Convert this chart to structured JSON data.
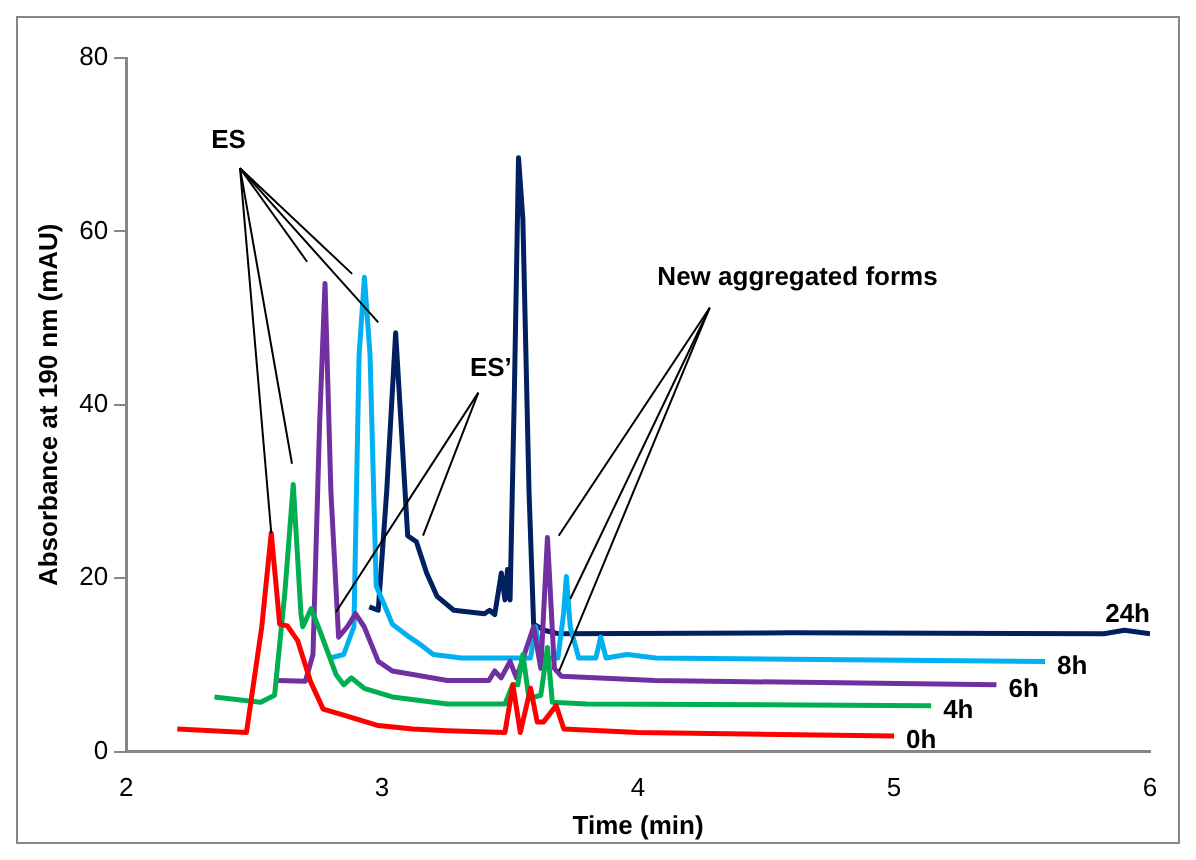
{
  "chart_data": {
    "type": "line",
    "xlabel": "Time (min)",
    "ylabel": "Absorbance at 190 nm (mAU)",
    "xlim": [
      2,
      6
    ],
    "xticks": [
      2,
      3,
      4,
      5,
      6
    ],
    "ylim": [
      0,
      80
    ],
    "yticks": [
      0,
      20,
      40,
      60,
      80
    ],
    "grid": false,
    "legend": false,
    "marker": "none",
    "line_style": "solid",
    "annotations": [
      {
        "text": "ES",
        "x": 2.567,
        "y": 25.2
      },
      {
        "text": "ES’",
        "x": 2.82,
        "y": 16.1
      },
      {
        "text": "New aggregated forms",
        "x": 3.69,
        "y": 24.9
      }
    ],
    "series": [
      {
        "name": "0h",
        "color": "#ff0000",
        "x": [
          2.2,
          2.47,
          2.53,
          2.567,
          2.6,
          2.63,
          2.67,
          2.72,
          2.77,
          2.85,
          2.985,
          3.12,
          3.255,
          3.48,
          3.511,
          3.54,
          3.58,
          3.606,
          3.63,
          3.68,
          3.71,
          4.0,
          5.0
        ],
        "values": [
          2.6,
          2.2,
          14.4,
          25.2,
          14.7,
          14.5,
          12.8,
          8.1,
          4.9,
          4.2,
          3.0,
          2.6,
          2.4,
          2.2,
          7.7,
          2.2,
          7.3,
          3.4,
          3.4,
          5.3,
          2.6,
          2.2,
          1.8
        ]
      },
      {
        "name": "4h",
        "color": "#00b050",
        "x": [
          2.345,
          2.526,
          2.58,
          2.62,
          2.653,
          2.683,
          2.69,
          2.723,
          2.756,
          2.82,
          2.85,
          2.88,
          2.93,
          3.04,
          3.255,
          3.48,
          3.51,
          3.53,
          3.55,
          3.574,
          3.62,
          3.646,
          3.665,
          3.8,
          5.145
        ],
        "values": [
          6.3,
          5.7,
          6.5,
          18.3,
          30.8,
          15.9,
          14.4,
          16.5,
          14.0,
          8.9,
          7.7,
          8.5,
          7.3,
          6.3,
          5.5,
          5.5,
          7.7,
          7.7,
          11.2,
          6.1,
          6.5,
          12.0,
          5.7,
          5.5,
          5.3
        ]
      },
      {
        "name": "6h",
        "color": "#7030a0",
        "x": [
          2.594,
          2.7,
          2.73,
          2.756,
          2.777,
          2.8,
          2.83,
          2.864,
          2.896,
          2.93,
          2.985,
          3.04,
          3.12,
          3.255,
          3.417,
          3.44,
          3.465,
          3.5,
          3.525,
          3.592,
          3.62,
          3.646,
          3.673,
          3.7,
          4.065,
          5.4
        ],
        "values": [
          8.2,
          8.1,
          11.2,
          37.9,
          54.0,
          30.0,
          13.2,
          14.4,
          15.9,
          14.4,
          10.4,
          9.3,
          8.9,
          8.2,
          8.2,
          9.3,
          8.5,
          10.4,
          8.5,
          14.4,
          9.6,
          24.7,
          9.6,
          8.7,
          8.2,
          7.7
        ]
      },
      {
        "name": "8h",
        "color": "#00b0f0",
        "x": [
          2.796,
          2.85,
          2.89,
          2.91,
          2.931,
          2.953,
          2.977,
          3.012,
          3.04,
          3.107,
          3.147,
          3.2,
          3.31,
          3.58,
          3.6,
          3.62,
          3.687,
          3.709,
          3.72,
          3.735,
          3.768,
          3.835,
          3.854,
          3.875,
          3.957,
          4.07,
          5.59
        ],
        "values": [
          10.8,
          11.2,
          14.4,
          45.7,
          54.7,
          45.7,
          19.1,
          16.7,
          14.7,
          13.2,
          12.4,
          11.2,
          10.8,
          10.8,
          14.4,
          10.8,
          10.8,
          15.9,
          20.2,
          14.4,
          10.8,
          10.8,
          13.2,
          10.8,
          11.2,
          10.8,
          10.4
        ]
      },
      {
        "name": "24h",
        "color": "#002060",
        "x": [
          2.95,
          2.985,
          3.018,
          3.053,
          3.074,
          3.1,
          3.134,
          3.174,
          3.215,
          3.28,
          3.4,
          3.42,
          3.44,
          3.466,
          3.48,
          3.49,
          3.5,
          3.517,
          3.533,
          3.55,
          3.574,
          3.592,
          3.633,
          3.687,
          4.6,
          5.82,
          5.9,
          6.0
        ],
        "values": [
          16.7,
          16.3,
          30.0,
          48.3,
          37.9,
          24.9,
          24.2,
          20.6,
          17.9,
          16.3,
          15.9,
          16.3,
          15.8,
          20.6,
          17.5,
          21.0,
          17.5,
          41.8,
          68.5,
          61.4,
          30.0,
          14.7,
          14.0,
          13.6,
          13.7,
          13.6,
          14.0,
          13.6
        ]
      }
    ]
  }
}
